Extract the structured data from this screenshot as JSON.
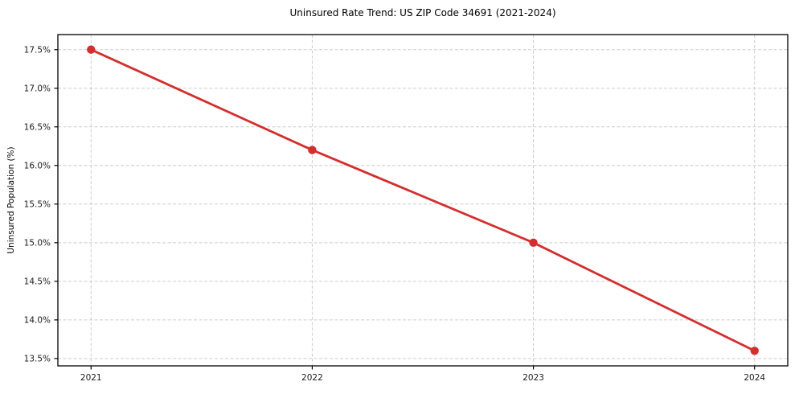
{
  "chart_data": {
    "type": "line",
    "title": "Uninsured Rate Trend: US ZIP Code 34691 (2021-2024)",
    "xlabel": "",
    "ylabel": "Uninsured Population (%)",
    "x": [
      2021,
      2022,
      2023,
      2024
    ],
    "x_tick_labels": [
      "2021",
      "2022",
      "2023",
      "2024"
    ],
    "series": [
      {
        "name": "Uninsured Population (%)",
        "values": [
          17.5,
          16.2,
          15.0,
          13.6
        ]
      }
    ],
    "y_ticks": [
      13.5,
      14.0,
      14.5,
      15.0,
      15.5,
      16.0,
      16.5,
      17.0,
      17.5
    ],
    "y_tick_suffix": "%",
    "xlim": [
      2020.85,
      2024.15
    ],
    "ylim": [
      13.405,
      17.695
    ],
    "grid": true,
    "legend": "none",
    "line_color": "#d32f2f",
    "marker": "circle",
    "grid_color": "#cccccc",
    "spine_color": "#000000"
  }
}
